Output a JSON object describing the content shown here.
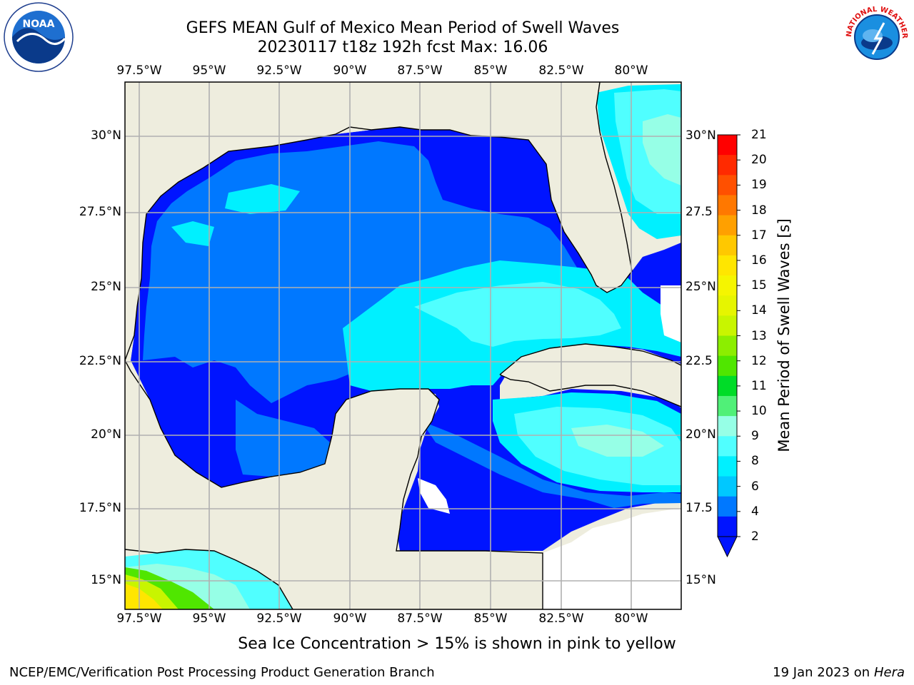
{
  "title": {
    "line1": "GEFS MEAN Gulf of Mexico Mean Period of Swell Waves",
    "line2": "20230117 t18z 192h fcst   Max: 16.06"
  },
  "map": {
    "lon_labels": [
      "97.5°W",
      "95°W",
      "92.5°W",
      "90°W",
      "87.5°W",
      "85°W",
      "82.5°W",
      "80°W"
    ],
    "lat_labels_left": [
      "30°N",
      "27.5°N",
      "25°N",
      "22.5°N",
      "20°N",
      "17.5°N",
      "15°N"
    ],
    "lat_labels_right": [
      "30°N",
      "27.5",
      "25°N",
      "22.5",
      "20°N",
      "17.5",
      "15°N"
    ],
    "colors": {
      "land": "#eeedde",
      "grid": "#b0b0b0",
      "coast": "#000000",
      "undefined": "#ffffff"
    }
  },
  "colorbar": {
    "title": "Mean Period of Swell Waves [s]",
    "tick_labels": [
      "21",
      "20",
      "19",
      "18",
      "17",
      "16",
      "15",
      "14",
      "13",
      "12",
      "11",
      "10",
      "9",
      "8",
      "6",
      "4",
      "2"
    ],
    "band_colors": [
      "#ff0000",
      "#ff2a00",
      "#ff5000",
      "#ff7800",
      "#ffa000",
      "#ffc800",
      "#ffe600",
      "#f5f500",
      "#e6f500",
      "#c8f500",
      "#8cee00",
      "#50e600",
      "#00dc28",
      "#50f078",
      "#96ffe6",
      "#50ffff",
      "#00f0ff",
      "#00c8ff",
      "#0078ff",
      "#0014ff"
    ]
  },
  "subtitle": "Sea Ice Concentration > 15% is shown in pink to yellow",
  "footer": {
    "left": "NCEP/EMC/Verification Post Processing Product Generation Branch",
    "right_prefix": "19 Jan 2023 on ",
    "right_host": "Hera"
  },
  "logos": {
    "left": "NOAA",
    "right": "NATIONAL WEATHER SERVICE"
  }
}
